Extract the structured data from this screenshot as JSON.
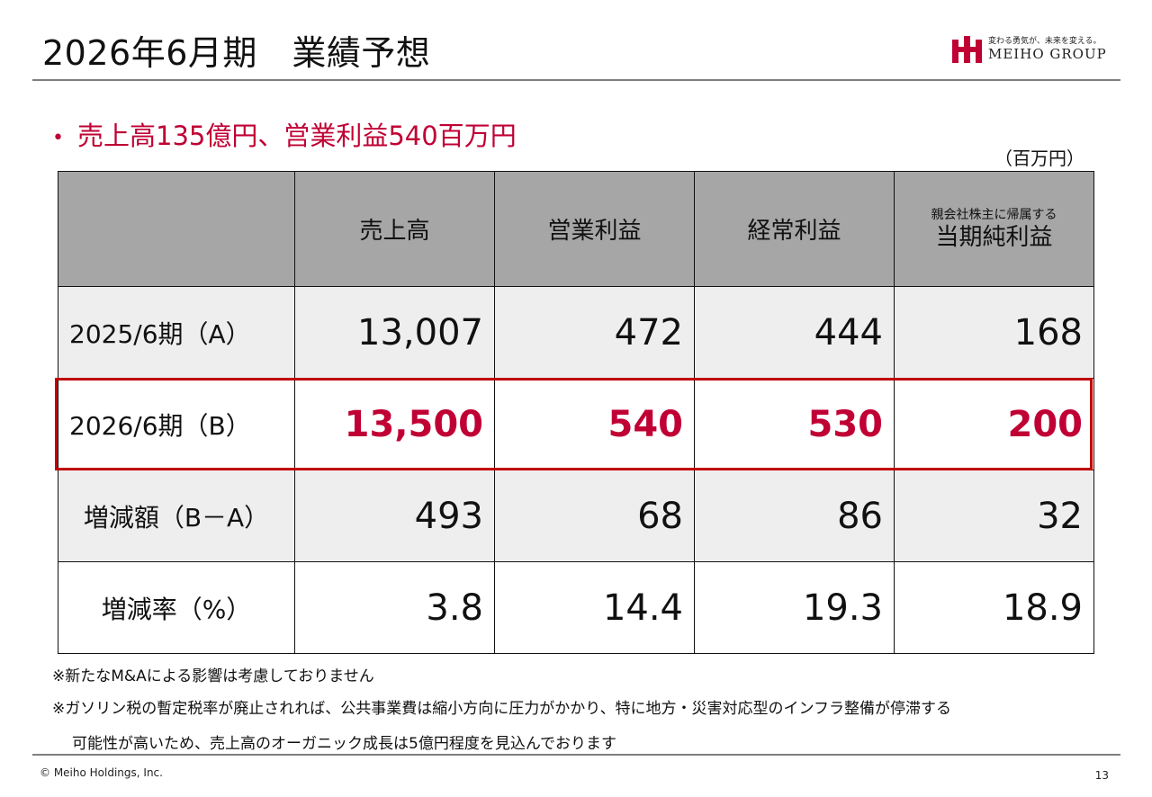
{
  "header": {
    "title": "2026年6月期　業績予想",
    "logo_tagline": "変わる勇気が、未来を変える。",
    "logo_name": "MEIHO GROUP"
  },
  "headline": {
    "bullet": "•",
    "text": "売上高135億円、営業利益540百万円"
  },
  "unit_label": "（百万円）",
  "table": {
    "headers": [
      "",
      "売上高",
      "営業利益",
      "経常利益"
    ],
    "header_last_small": "親会社株主に帰属する",
    "header_last_big": "当期純利益",
    "rows": [
      {
        "label": "2025/6期（A）",
        "values": [
          "13,007",
          "472",
          "444",
          "168"
        ]
      },
      {
        "label": "2026/6期（B）",
        "values": [
          "13,500",
          "540",
          "530",
          "200"
        ]
      },
      {
        "label": "増減額（B－A）",
        "values": [
          "493",
          "68",
          "86",
          "32"
        ]
      },
      {
        "label": "増減率（%）",
        "values": [
          "3.8",
          "14.4",
          "19.3",
          "18.9"
        ]
      }
    ]
  },
  "notes": [
    "※新たなM&Aによる影響は考慮しておりません",
    "※ガソリン税の暫定税率が廃止されれば、公共事業費は縮小方向に圧力がかかり、特に地方・災害対応型のインフラ整備が停滞する",
    "可能性が高いため、売上高のオーガニック成長は5億円程度を見込んでおります"
  ],
  "footer": {
    "copyright": "© Meiho Holdings, Inc.",
    "page_number": "13"
  },
  "colors": {
    "accent": "#c00034",
    "highlight_border": "#c00000",
    "header_fill": "#a6a6a6",
    "row_shade": "#eeeeee"
  }
}
